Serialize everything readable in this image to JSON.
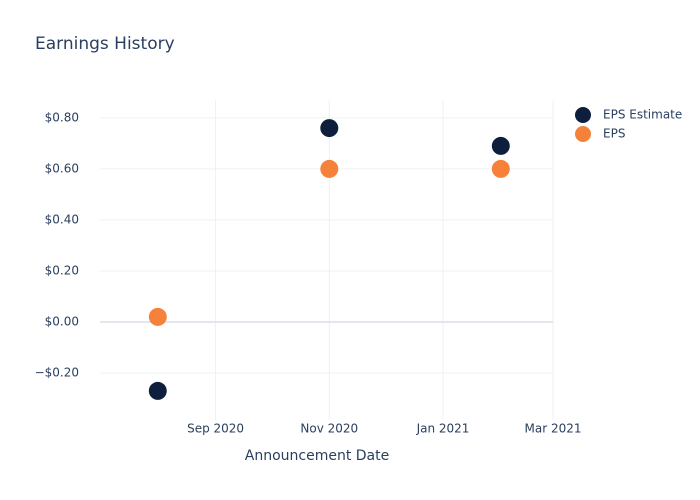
{
  "chart_data": {
    "type": "scatter",
    "title": "Earnings History",
    "x_label": "Announcement Date",
    "x": [
      "2020-08",
      "2020-11",
      "2021-02"
    ],
    "series": [
      {
        "name": "EPS Estimate",
        "color": "#0d1f3c",
        "values": [
          -0.27,
          0.76,
          0.69
        ]
      },
      {
        "name": "EPS",
        "color": "#f5813a",
        "values": [
          0.02,
          0.6,
          0.6
        ]
      }
    ],
    "xlim": [
      "2020-07",
      "2021-03"
    ],
    "xticks": [
      {
        "value": "2020-09",
        "label": "Sep 2020"
      },
      {
        "value": "2020-11",
        "label": "Nov 2020"
      },
      {
        "value": "2021-01",
        "label": "Jan 2021"
      },
      {
        "value": "2021-03",
        "label": "Mar 2021"
      }
    ],
    "ylim": [
      -0.384,
      0.87
    ],
    "yticks": [
      {
        "value": -0.2,
        "label": "−$0.20"
      },
      {
        "value": 0,
        "label": "$0.00"
      },
      {
        "value": 0.2,
        "label": "$0.20"
      },
      {
        "value": 0.4,
        "label": "$0.40"
      },
      {
        "value": 0.6,
        "label": "$0.60"
      },
      {
        "value": 0.8,
        "label": "$0.80"
      }
    ],
    "grid": true,
    "legend": "top-right"
  }
}
